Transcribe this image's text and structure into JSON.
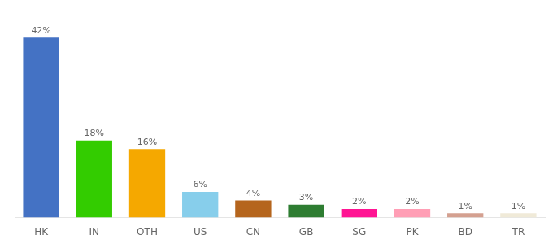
{
  "chart_data": {
    "type": "bar",
    "categories": [
      "HK",
      "IN",
      "OTH",
      "US",
      "CN",
      "GB",
      "SG",
      "PK",
      "BD",
      "TR"
    ],
    "values": [
      42,
      18,
      16,
      6,
      4,
      3,
      2,
      2,
      1,
      1
    ],
    "value_labels": [
      "42%",
      "18%",
      "16%",
      "6%",
      "4%",
      "3%",
      "2%",
      "2%",
      "1%",
      "1%"
    ],
    "colors": [
      "#4472c4",
      "#33cc00",
      "#f5a800",
      "#87ceeb",
      "#b5651d",
      "#2e7d32",
      "#ff1493",
      "#ff9eb5",
      "#d4a090",
      "#f0ead8"
    ],
    "ylim": [
      0,
      47
    ],
    "data_labels": true,
    "tick_labels": "x",
    "grid": false
  }
}
